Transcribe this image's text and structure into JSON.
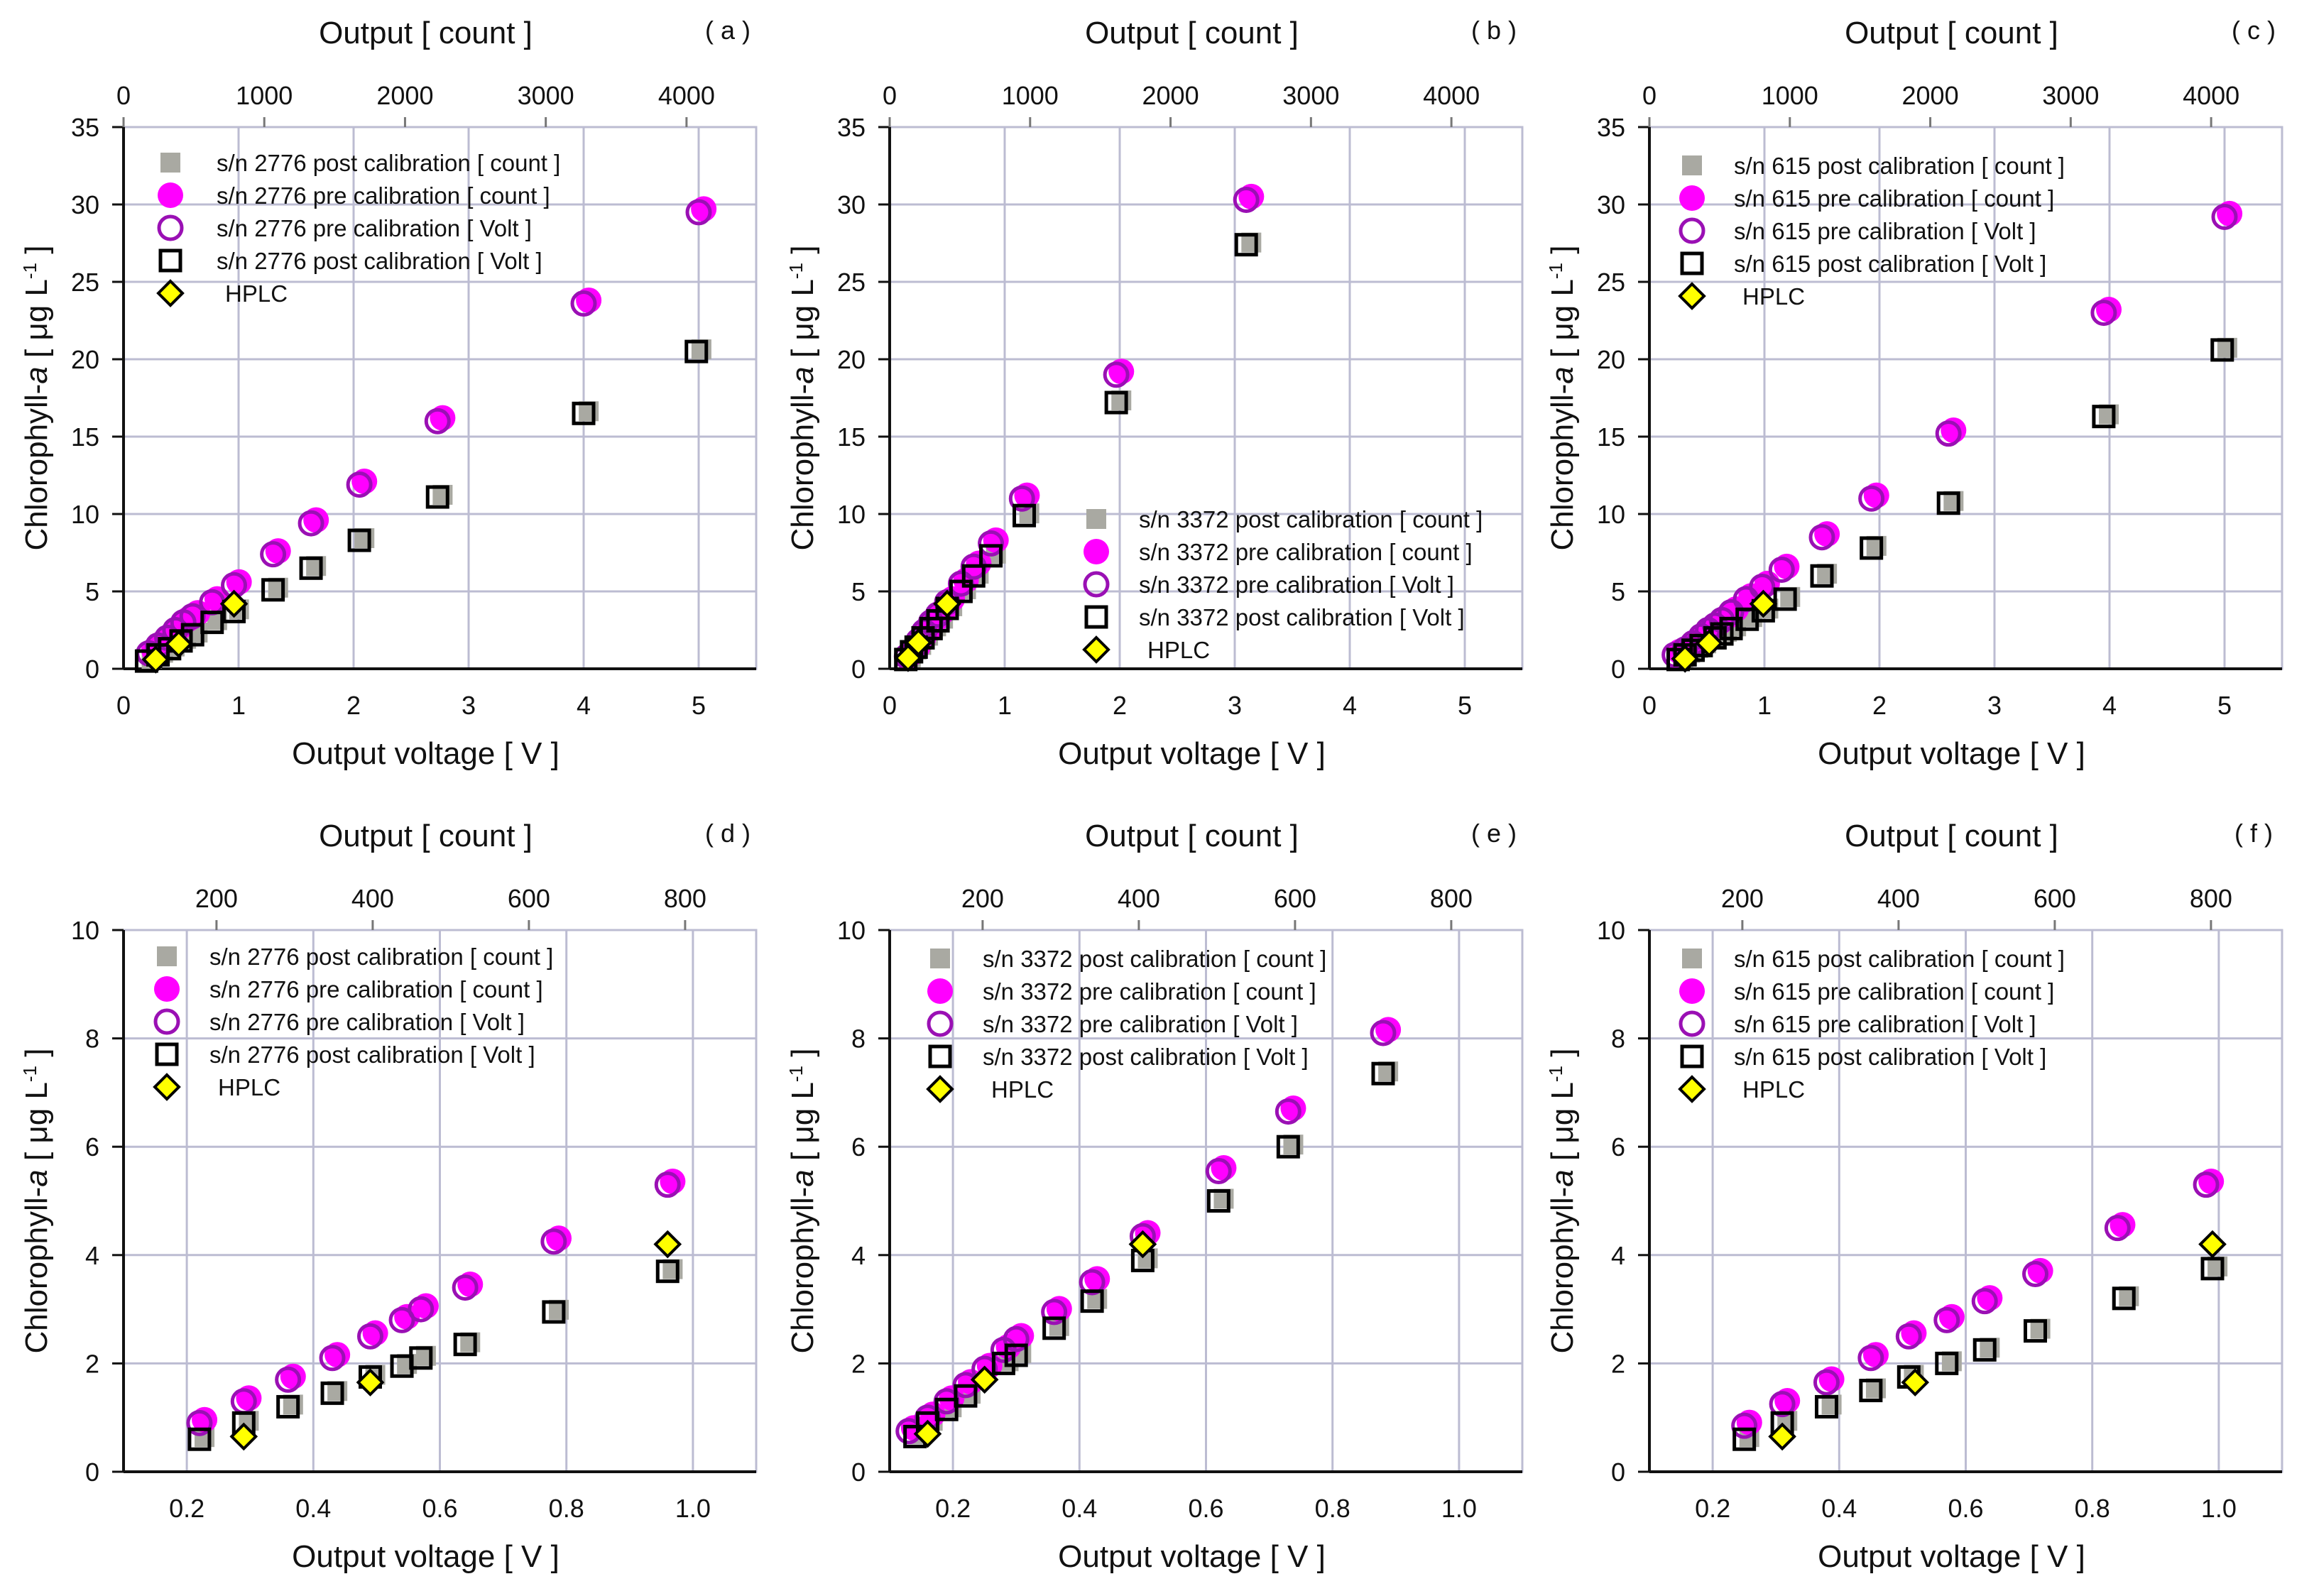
{
  "colors": {
    "post_count": "#a9a9a2",
    "pre_count": "#ff00ff",
    "pre_volt": "#9a10b4",
    "post_volt": "#000000",
    "hplc": "#ffff00",
    "grid": "#bcbcd2"
  },
  "chart_data": [
    {
      "type": "scatter",
      "panel": "( a )",
      "top_title": "Output [ count ]",
      "xlabel": "Output voltage [ V ]",
      "ylabel_main": "Chlorophyll-",
      "ylabel_italic": "a",
      "ylabel_unit": " [ μg L",
      "ylabel_sup": "-1",
      "ylabel_end": " ]",
      "xlim": [
        0,
        5.5
      ],
      "ylim": [
        0,
        35
      ],
      "xticks": [
        0,
        1,
        2,
        3,
        4,
        5
      ],
      "xtick_labels": [
        "0",
        "1",
        "2",
        "3",
        "4",
        "5"
      ],
      "yticks": [
        0,
        5,
        10,
        15,
        20,
        25,
        30,
        35
      ],
      "top_lim": [
        0,
        4495
      ],
      "top_ticks": [
        0,
        1000,
        2000,
        3000,
        4000
      ],
      "legend": [
        "s/n 2776 post calibration [ count ]",
        "s/n 2776 pre calibration [ count ]",
        "s/n 2776 pre calibration [ Volt ]",
        "s/n 2776 post calibration [ Volt ]",
        "HPLC"
      ],
      "legend_placement": "top-left",
      "pre": [
        [
          0.22,
          1.0
        ],
        [
          0.3,
          1.5
        ],
        [
          0.38,
          2.0
        ],
        [
          0.45,
          2.5
        ],
        [
          0.52,
          3.0
        ],
        [
          0.6,
          3.4
        ],
        [
          0.77,
          4.3
        ],
        [
          0.96,
          5.4
        ],
        [
          1.3,
          7.4
        ],
        [
          1.63,
          9.4
        ],
        [
          2.05,
          11.9
        ],
        [
          2.73,
          16.0
        ],
        [
          4.0,
          23.6
        ],
        [
          5.0,
          29.5
        ]
      ],
      "post": [
        [
          0.2,
          0.5
        ],
        [
          0.3,
          0.9
        ],
        [
          0.4,
          1.3
        ],
        [
          0.5,
          1.8
        ],
        [
          0.6,
          2.2
        ],
        [
          0.77,
          3.0
        ],
        [
          0.96,
          3.7
        ],
        [
          1.3,
          5.1
        ],
        [
          1.63,
          6.5
        ],
        [
          2.05,
          8.3
        ],
        [
          2.73,
          11.1
        ],
        [
          4.0,
          16.5
        ],
        [
          4.98,
          20.5
        ]
      ],
      "hplc": [
        [
          0.28,
          0.6
        ],
        [
          0.48,
          1.6
        ],
        [
          0.96,
          4.2
        ]
      ]
    },
    {
      "type": "scatter",
      "panel": "( b )",
      "top_title": "Output [ count ]",
      "xlabel": "Output voltage [ V ]",
      "ylabel_main": "Chlorophyll-",
      "ylabel_italic": "a",
      "ylabel_unit": " [ μg L",
      "ylabel_sup": "-1",
      "ylabel_end": " ]",
      "xlim": [
        0,
        5.5
      ],
      "ylim": [
        0,
        35
      ],
      "xticks": [
        0,
        1,
        2,
        3,
        4,
        5
      ],
      "xtick_labels": [
        "0",
        "1",
        "2",
        "3",
        "4",
        "5"
      ],
      "yticks": [
        0,
        5,
        10,
        15,
        20,
        25,
        30,
        35
      ],
      "top_lim": [
        0,
        4505
      ],
      "top_ticks": [
        0,
        1000,
        2000,
        3000,
        4000
      ],
      "legend": [
        "s/n 3372 post calibration [ count ]",
        "s/n 3372 pre calibration [ count ]",
        "s/n 3372 pre calibration [ Volt ]",
        "s/n 3372 post calibration [ Volt ]",
        "HPLC"
      ],
      "legend_placement": "center-right",
      "pre": [
        [
          0.15,
          0.8
        ],
        [
          0.2,
          1.2
        ],
        [
          0.25,
          1.8
        ],
        [
          0.3,
          2.4
        ],
        [
          0.36,
          3.0
        ],
        [
          0.42,
          3.5
        ],
        [
          0.5,
          4.3
        ],
        [
          0.62,
          5.5
        ],
        [
          0.73,
          6.6
        ],
        [
          0.88,
          8.1
        ],
        [
          1.15,
          11.0
        ],
        [
          1.97,
          19.0
        ],
        [
          3.1,
          30.3
        ]
      ],
      "post": [
        [
          0.14,
          0.6
        ],
        [
          0.19,
          1.1
        ],
        [
          0.23,
          1.4
        ],
        [
          0.29,
          2.0
        ],
        [
          0.36,
          2.6
        ],
        [
          0.42,
          3.1
        ],
        [
          0.5,
          3.9
        ],
        [
          0.62,
          5.0
        ],
        [
          0.73,
          6.0
        ],
        [
          0.88,
          7.3
        ],
        [
          1.17,
          9.9
        ],
        [
          1.97,
          17.2
        ],
        [
          3.1,
          27.4
        ]
      ],
      "hplc": [
        [
          0.16,
          0.7
        ],
        [
          0.25,
          1.7
        ],
        [
          0.5,
          4.2
        ]
      ]
    },
    {
      "type": "scatter",
      "panel": "( c )",
      "top_title": "Output [ count ]",
      "xlabel": "Output voltage [ V ]",
      "ylabel_main": "Chlorophyll-",
      "ylabel_italic": "a",
      "ylabel_unit": " [ μg L",
      "ylabel_sup": "-1",
      "ylabel_end": " ]",
      "xlim": [
        0,
        5.5
      ],
      "ylim": [
        0,
        35
      ],
      "xticks": [
        0,
        1,
        2,
        3,
        4,
        5
      ],
      "xtick_labels": [
        "0",
        "1",
        "2",
        "3",
        "4",
        "5"
      ],
      "yticks": [
        0,
        5,
        10,
        15,
        20,
        25,
        30,
        35
      ],
      "top_lim": [
        0,
        4505
      ],
      "top_ticks": [
        0,
        1000,
        2000,
        3000,
        4000
      ],
      "legend": [
        "s/n 615 post calibration [ count ]",
        "s/n 615 pre calibration [ count ]",
        "s/n 615 pre calibration [ Volt ]",
        "s/n 615 post calibration [ Volt ]",
        "HPLC"
      ],
      "legend_placement": "top-left",
      "pre": [
        [
          0.22,
          0.9
        ],
        [
          0.31,
          1.25
        ],
        [
          0.38,
          1.65
        ],
        [
          0.45,
          2.1
        ],
        [
          0.51,
          2.5
        ],
        [
          0.57,
          2.8
        ],
        [
          0.63,
          3.15
        ],
        [
          0.71,
          3.65
        ],
        [
          0.84,
          4.5
        ],
        [
          0.98,
          5.3
        ],
        [
          1.15,
          6.4
        ],
        [
          1.5,
          8.5
        ],
        [
          1.93,
          11.0
        ],
        [
          2.6,
          15.2
        ],
        [
          3.95,
          23.0
        ],
        [
          5.0,
          29.2
        ]
      ],
      "post": [
        [
          0.25,
          0.6
        ],
        [
          0.31,
          0.9
        ],
        [
          0.38,
          1.2
        ],
        [
          0.45,
          1.5
        ],
        [
          0.57,
          2.0
        ],
        [
          0.63,
          2.25
        ],
        [
          0.71,
          2.6
        ],
        [
          0.85,
          3.2
        ],
        [
          0.99,
          3.75
        ],
        [
          1.18,
          4.5
        ],
        [
          1.5,
          6.0
        ],
        [
          1.93,
          7.8
        ],
        [
          2.6,
          10.7
        ],
        [
          3.95,
          16.3
        ],
        [
          4.98,
          20.6
        ]
      ],
      "hplc": [
        [
          0.31,
          0.65
        ],
        [
          0.52,
          1.65
        ],
        [
          0.99,
          4.2
        ]
      ]
    },
    {
      "type": "scatter",
      "panel": "( d )",
      "top_title": "Output [ count ]",
      "xlabel": "Output voltage [ V ]",
      "ylabel_main": "Chlorophyll-",
      "ylabel_italic": "a",
      "ylabel_unit": " [ μg L",
      "ylabel_sup": "-1",
      "ylabel_end": " ]",
      "xlim": [
        0.1,
        1.1
      ],
      "ylim": [
        0,
        10
      ],
      "xticks": [
        0.2,
        0.4,
        0.6,
        0.8,
        1.0
      ],
      "xtick_labels": [
        "0.2",
        "0.4",
        "0.6",
        "0.8",
        "1.0"
      ],
      "yticks": [
        0,
        2,
        4,
        6,
        8,
        10
      ],
      "top_lim": [
        81,
        891
      ],
      "top_ticks": [
        200,
        400,
        600,
        800
      ],
      "legend": [
        "s/n 2776 post calibration [ count ]",
        "s/n 2776 pre calibration [ count ]",
        "s/n 2776 pre calibration [ Volt ]",
        "s/n 2776 post calibration [ Volt ]",
        "HPLC"
      ],
      "legend_placement": "top-left",
      "pre": [
        [
          0.22,
          0.9
        ],
        [
          0.29,
          1.3
        ],
        [
          0.36,
          1.7
        ],
        [
          0.43,
          2.1
        ],
        [
          0.49,
          2.5
        ],
        [
          0.54,
          2.8
        ],
        [
          0.57,
          3.0
        ],
        [
          0.64,
          3.4
        ],
        [
          0.78,
          4.25
        ],
        [
          0.96,
          5.3
        ]
      ],
      "post": [
        [
          0.22,
          0.6
        ],
        [
          0.29,
          0.9
        ],
        [
          0.36,
          1.2
        ],
        [
          0.43,
          1.45
        ],
        [
          0.49,
          1.75
        ],
        [
          0.54,
          1.95
        ],
        [
          0.57,
          2.1
        ],
        [
          0.64,
          2.35
        ],
        [
          0.78,
          2.95
        ],
        [
          0.96,
          3.7
        ]
      ],
      "hplc": [
        [
          0.29,
          0.65
        ],
        [
          0.49,
          1.65
        ],
        [
          0.96,
          4.2
        ]
      ]
    },
    {
      "type": "scatter",
      "panel": "( e )",
      "top_title": "Output [ count ]",
      "xlabel": "Output voltage [ V ]",
      "ylabel_main": "Chlorophyll-",
      "ylabel_italic": "a",
      "ylabel_unit": " [ μg L",
      "ylabel_sup": "-1",
      "ylabel_end": " ]",
      "xlim": [
        0.1,
        1.1
      ],
      "ylim": [
        0,
        10
      ],
      "xticks": [
        0.2,
        0.4,
        0.6,
        0.8,
        1.0
      ],
      "xtick_labels": [
        "0.2",
        "0.4",
        "0.6",
        "0.8",
        "1.0"
      ],
      "yticks": [
        0,
        2,
        4,
        6,
        8,
        10
      ],
      "top_lim": [
        81,
        891
      ],
      "top_ticks": [
        200,
        400,
        600,
        800
      ],
      "legend": [
        "s/n 3372 post calibration [ count ]",
        "s/n 3372 pre calibration [ count ]",
        "s/n 3372 pre calibration [ Volt ]",
        "s/n 3372 post calibration [ Volt ]",
        "HPLC"
      ],
      "legend_placement": "top-left",
      "pre": [
        [
          0.13,
          0.75
        ],
        [
          0.16,
          1.0
        ],
        [
          0.19,
          1.3
        ],
        [
          0.22,
          1.6
        ],
        [
          0.25,
          1.9
        ],
        [
          0.28,
          2.25
        ],
        [
          0.3,
          2.45
        ],
        [
          0.36,
          2.95
        ],
        [
          0.42,
          3.5
        ],
        [
          0.5,
          4.35
        ],
        [
          0.62,
          5.55
        ],
        [
          0.73,
          6.65
        ],
        [
          0.88,
          8.1
        ]
      ],
      "post": [
        [
          0.14,
          0.65
        ],
        [
          0.16,
          0.9
        ],
        [
          0.19,
          1.15
        ],
        [
          0.22,
          1.4
        ],
        [
          0.28,
          2.0
        ],
        [
          0.3,
          2.15
        ],
        [
          0.36,
          2.65
        ],
        [
          0.42,
          3.15
        ],
        [
          0.5,
          3.9
        ],
        [
          0.62,
          5.0
        ],
        [
          0.73,
          6.0
        ],
        [
          0.88,
          7.35
        ]
      ],
      "hplc": [
        [
          0.16,
          0.7
        ],
        [
          0.25,
          1.7
        ],
        [
          0.5,
          4.2
        ]
      ]
    },
    {
      "type": "scatter",
      "panel": "( f )",
      "top_title": "Output [ count ]",
      "xlabel": "Output voltage [ V ]",
      "ylabel_main": "Chlorophyll-",
      "ylabel_italic": "a",
      "ylabel_unit": " [ μg L",
      "ylabel_sup": "-1",
      "ylabel_end": " ]",
      "xlim": [
        0.1,
        1.1
      ],
      "ylim": [
        0,
        10
      ],
      "xticks": [
        0.2,
        0.4,
        0.6,
        0.8,
        1.0
      ],
      "xtick_labels": [
        "0.2",
        "0.4",
        "0.6",
        "0.8",
        "1.0"
      ],
      "yticks": [
        0,
        2,
        4,
        6,
        8,
        10
      ],
      "top_lim": [
        81,
        891
      ],
      "top_ticks": [
        200,
        400,
        600,
        800
      ],
      "legend": [
        "s/n 615 post calibration [ count ]",
        "s/n 615 pre calibration [ count ]",
        "s/n 615 pre calibration [ Volt ]",
        "s/n 615 post calibration [ Volt ]",
        "HPLC"
      ],
      "legend_placement": "top-left",
      "pre": [
        [
          0.25,
          0.85
        ],
        [
          0.31,
          1.25
        ],
        [
          0.38,
          1.65
        ],
        [
          0.45,
          2.1
        ],
        [
          0.51,
          2.5
        ],
        [
          0.57,
          2.8
        ],
        [
          0.63,
          3.15
        ],
        [
          0.71,
          3.65
        ],
        [
          0.84,
          4.5
        ],
        [
          0.98,
          5.3
        ]
      ],
      "post": [
        [
          0.25,
          0.6
        ],
        [
          0.31,
          0.9
        ],
        [
          0.38,
          1.2
        ],
        [
          0.45,
          1.5
        ],
        [
          0.51,
          1.75
        ],
        [
          0.57,
          2.0
        ],
        [
          0.63,
          2.25
        ],
        [
          0.71,
          2.6
        ],
        [
          0.85,
          3.2
        ],
        [
          0.99,
          3.75
        ]
      ],
      "hplc": [
        [
          0.31,
          0.65
        ],
        [
          0.52,
          1.65
        ],
        [
          0.99,
          4.2
        ]
      ]
    }
  ]
}
